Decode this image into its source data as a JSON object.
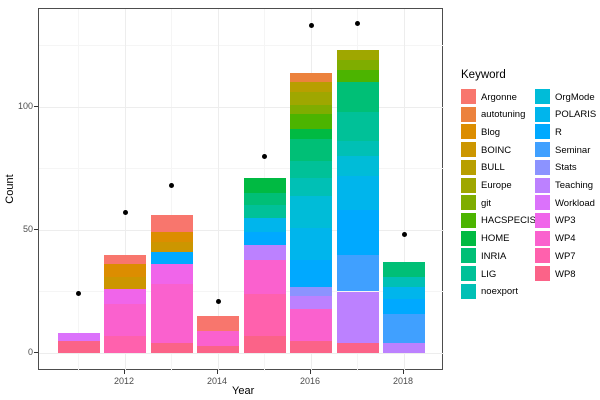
{
  "chart_data": {
    "type": "bar",
    "subtype": "stacked-bar-with-points",
    "title": "",
    "xlabel": "Year",
    "ylabel": "Count",
    "legend_title": "Keyword",
    "x_ticks": [
      "2012",
      "2014",
      "2016",
      "2018"
    ],
    "x_tick_years": [
      2012,
      2014,
      2016,
      2018
    ],
    "y_ticks": [
      "0",
      "50",
      "100"
    ],
    "y_tick_values": [
      0,
      50,
      100
    ],
    "y_minor_values": [
      25,
      75,
      125
    ],
    "x_minor_years": [
      2011,
      2013,
      2015,
      2017
    ],
    "ylim": [
      -7,
      140
    ],
    "xlim": [
      2010.2,
      2018.8
    ],
    "grid": true,
    "legend_position": "right",
    "keywords": [
      "Argonne",
      "autotuning",
      "Blog",
      "BOINC",
      "BULL",
      "Europe",
      "git",
      "HACSPECIS",
      "HOME",
      "INRIA",
      "LIG",
      "noexport",
      "OrgMode",
      "POLARIS",
      "R",
      "Seminar",
      "Stats",
      "Teaching",
      "Workload",
      "WP3",
      "WP4",
      "WP7",
      "WP8"
    ],
    "colors": {
      "Argonne": "#F8766D",
      "autotuning": "#EC823D",
      "Blog": "#DC8D00",
      "BOINC": "#CC9600",
      "BULL": "#B89F00",
      "Europe": "#9FA700",
      "git": "#7FAD00",
      "HACSPECIS": "#4CB400",
      "HOME": "#00BA42",
      "INRIA": "#00BF76",
      "LIG": "#00C198",
      "noexport": "#00C0B5",
      "OrgMode": "#00BCD8",
      "POLARIS": "#00B5EC",
      "R": "#00A9FF",
      "Seminar": "#40A0FF",
      "Stats": "#8C93FF",
      "Teaching": "#BC81FF",
      "Workload": "#DB72FB",
      "WP3": "#F065EA",
      "WP4": "#FA61CE",
      "WP7": "#FF61AD",
      "WP8": "#FB6388"
    },
    "bars": [
      {
        "year": 2011,
        "total": 8,
        "segments_bottom_to_top": [
          [
            "WP8",
            5
          ],
          [
            "Workload",
            3
          ]
        ]
      },
      {
        "year": 2012,
        "total": 40,
        "segments_bottom_to_top": [
          [
            "WP7",
            7
          ],
          [
            "WP4",
            13
          ],
          [
            "WP3",
            6
          ],
          [
            "BOINC",
            5
          ],
          [
            "Blog",
            5
          ],
          [
            "Argonne",
            4
          ]
        ]
      },
      {
        "year": 2013,
        "total": 56,
        "segments_bottom_to_top": [
          [
            "WP8",
            4
          ],
          [
            "WP4",
            24
          ],
          [
            "WP3",
            8
          ],
          [
            "R",
            5
          ],
          [
            "BOINC",
            4
          ],
          [
            "Blog",
            4
          ],
          [
            "Argonne",
            7
          ]
        ]
      },
      {
        "year": 2014,
        "total": 15,
        "segments_bottom_to_top": [
          [
            "WP8",
            3
          ],
          [
            "WP4",
            6
          ],
          [
            "Argonne",
            6
          ]
        ]
      },
      {
        "year": 2015,
        "total": 71,
        "segments_bottom_to_top": [
          [
            "WP8",
            7
          ],
          [
            "WP7",
            17
          ],
          [
            "WP4",
            14
          ],
          [
            "Teaching",
            6
          ],
          [
            "R",
            5
          ],
          [
            "POLARIS",
            6
          ],
          [
            "LIG",
            5
          ],
          [
            "INRIA",
            5
          ],
          [
            "HOME",
            6
          ]
        ]
      },
      {
        "year": 2016,
        "total": 114,
        "segments_bottom_to_top": [
          [
            "WP8",
            5
          ],
          [
            "WP4",
            13
          ],
          [
            "Teaching",
            5
          ],
          [
            "Stats",
            4
          ],
          [
            "R",
            11
          ],
          [
            "POLARIS",
            13
          ],
          [
            "OrgMode",
            13
          ],
          [
            "noexport",
            7
          ],
          [
            "LIG",
            7
          ],
          [
            "INRIA",
            9
          ],
          [
            "HOME",
            4
          ],
          [
            "HACSPECIS",
            6
          ],
          [
            "git",
            4
          ],
          [
            "Europe",
            5
          ],
          [
            "BULL",
            4
          ],
          [
            "autotuning",
            4
          ]
        ]
      },
      {
        "year": 2017,
        "total": 123,
        "segments_bottom_to_top": [
          [
            "WP8",
            4
          ],
          [
            "Teaching",
            21
          ],
          [
            "Seminar",
            15
          ],
          [
            "R",
            18
          ],
          [
            "POLARIS",
            14
          ],
          [
            "OrgMode",
            8
          ],
          [
            "noexport",
            6
          ],
          [
            "LIG",
            12
          ],
          [
            "INRIA",
            12
          ],
          [
            "HACSPECIS",
            5
          ],
          [
            "git",
            4
          ],
          [
            "Europe",
            4
          ]
        ]
      },
      {
        "year": 2018,
        "total": 37,
        "segments_bottom_to_top": [
          [
            "Teaching",
            4
          ],
          [
            "Seminar",
            12
          ],
          [
            "R",
            6
          ],
          [
            "POLARIS",
            5
          ],
          [
            "noexport",
            4
          ],
          [
            "INRIA",
            6
          ]
        ]
      }
    ],
    "points": [
      {
        "year": 2011,
        "value": 24
      },
      {
        "year": 2012,
        "value": 57
      },
      {
        "year": 2013,
        "value": 68
      },
      {
        "year": 2014,
        "value": 21
      },
      {
        "year": 2015,
        "value": 80
      },
      {
        "year": 2016,
        "value": 133
      },
      {
        "year": 2017,
        "value": 134
      },
      {
        "year": 2018,
        "value": 48
      }
    ],
    "legend_columns": [
      [
        "Argonne",
        "autotuning",
        "Blog",
        "BOINC",
        "BULL",
        "Europe",
        "git",
        "HACSPECIS",
        "HOME",
        "INRIA",
        "LIG",
        "noexport"
      ],
      [
        "OrgMode",
        "POLARIS",
        "R",
        "Seminar",
        "Stats",
        "Teaching",
        "Workload",
        "WP3",
        "WP4",
        "WP7",
        "WP8"
      ]
    ]
  }
}
